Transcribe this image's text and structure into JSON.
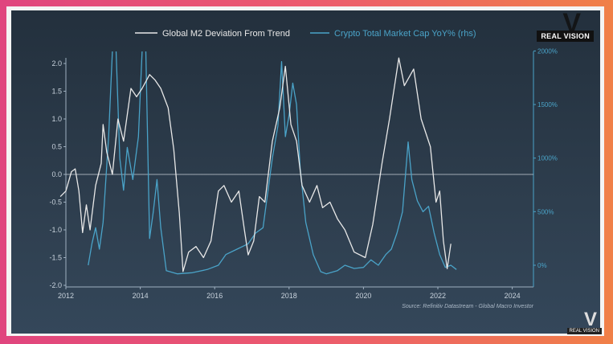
{
  "branding": {
    "logo_text": "REAL VISION"
  },
  "chart_data": {
    "type": "line",
    "title": "",
    "xlabel": "",
    "ylabel": "",
    "xlim": [
      2012,
      2024.6
    ],
    "ylim_left": [
      -2.0,
      2.2
    ],
    "ylim_right": [
      -150,
      2000
    ],
    "x_ticks": [
      "2012",
      "2014",
      "2016",
      "2018",
      "2020",
      "2022",
      "2024"
    ],
    "y_ticks_left": [
      "2.0",
      "1.5",
      "1.0",
      "0.5",
      "0.0",
      "-0.5",
      "-1.0",
      "-1.5",
      "-2.0"
    ],
    "y_ticks_right": [
      "2000%",
      "1500%",
      "1000%",
      "500%",
      "0%"
    ],
    "grid": false,
    "zero_line": true,
    "legend_position": "top",
    "source": "Source: Refinitiv Datastream - Global Macro Investor",
    "colors": {
      "m2": "#e8e8e8",
      "crypto": "#4aa3c8"
    },
    "series": [
      {
        "name": "Global M2 Deviation From Trend",
        "axis": "left",
        "x": [
          2011.85,
          2012.0,
          2012.15,
          2012.25,
          2012.35,
          2012.45,
          2012.55,
          2012.65,
          2012.8,
          2012.95,
          2013.0,
          2013.1,
          2013.25,
          2013.4,
          2013.55,
          2013.75,
          2013.9,
          2014.05,
          2014.25,
          2014.4,
          2014.55,
          2014.75,
          2014.9,
          2015.05,
          2015.15,
          2015.3,
          2015.5,
          2015.7,
          2015.9,
          2016.1,
          2016.25,
          2016.45,
          2016.65,
          2016.8,
          2016.9,
          2017.05,
          2017.2,
          2017.35,
          2017.55,
          2017.75,
          2017.9,
          2018.05,
          2018.2,
          2018.35,
          2018.55,
          2018.75,
          2018.9,
          2019.1,
          2019.3,
          2019.5,
          2019.75,
          2020.05,
          2020.25,
          2020.5,
          2020.7,
          2020.95,
          2021.1,
          2021.35,
          2021.55,
          2021.8,
          2021.95,
          2022.05,
          2022.15,
          2022.25,
          2022.35
        ],
        "y": [
          -0.4,
          -0.3,
          0.05,
          0.1,
          -0.3,
          -1.05,
          -0.55,
          -1.0,
          -0.2,
          0.2,
          0.9,
          0.4,
          0.0,
          1.0,
          0.6,
          1.55,
          1.4,
          1.55,
          1.8,
          1.7,
          1.55,
          1.2,
          0.45,
          -0.7,
          -1.75,
          -1.4,
          -1.3,
          -1.5,
          -1.2,
          -0.3,
          -0.2,
          -0.5,
          -0.3,
          -1.0,
          -1.45,
          -1.2,
          -0.4,
          -0.5,
          0.6,
          1.2,
          1.95,
          0.9,
          0.6,
          -0.2,
          -0.5,
          -0.2,
          -0.6,
          -0.5,
          -0.8,
          -1.0,
          -1.4,
          -1.5,
          -0.9,
          0.2,
          1.0,
          2.1,
          1.6,
          1.9,
          1.0,
          0.5,
          -0.5,
          -0.3,
          -1.2,
          -1.7,
          -1.25
        ]
      },
      {
        "name": "Crypto Total Market Cap YoY% (rhs)",
        "axis": "right",
        "x": [
          2012.6,
          2012.7,
          2012.8,
          2012.9,
          2013.0,
          2013.15,
          2013.25,
          2013.35,
          2013.45,
          2013.55,
          2013.65,
          2013.8,
          2013.95,
          2014.05,
          2014.15,
          2014.25,
          2014.35,
          2014.45,
          2014.55,
          2014.7,
          2015.0,
          2015.4,
          2015.8,
          2016.1,
          2016.3,
          2016.6,
          2016.9,
          2017.1,
          2017.3,
          2017.55,
          2017.7,
          2017.8,
          2017.9,
          2018.0,
          2018.1,
          2018.2,
          2018.3,
          2018.45,
          2018.65,
          2018.85,
          2019.0,
          2019.3,
          2019.5,
          2019.75,
          2020.0,
          2020.2,
          2020.4,
          2020.6,
          2020.75,
          2020.9,
          2021.05,
          2021.2,
          2021.3,
          2021.45,
          2021.6,
          2021.75,
          2021.9,
          2022.05,
          2022.2,
          2022.35,
          2022.5
        ],
        "y": [
          0,
          200,
          350,
          150,
          400,
          1200,
          2000,
          2000,
          1000,
          700,
          1100,
          800,
          1200,
          2000,
          2000,
          250,
          500,
          800,
          350,
          -50,
          -80,
          -70,
          -40,
          0,
          100,
          150,
          200,
          300,
          350,
          1000,
          1300,
          1900,
          1200,
          1400,
          1700,
          1500,
          900,
          400,
          100,
          -60,
          -80,
          -50,
          0,
          -30,
          -20,
          50,
          0,
          100,
          150,
          300,
          500,
          1150,
          800,
          600,
          500,
          550,
          300,
          100,
          -20,
          0,
          -40
        ]
      }
    ]
  }
}
